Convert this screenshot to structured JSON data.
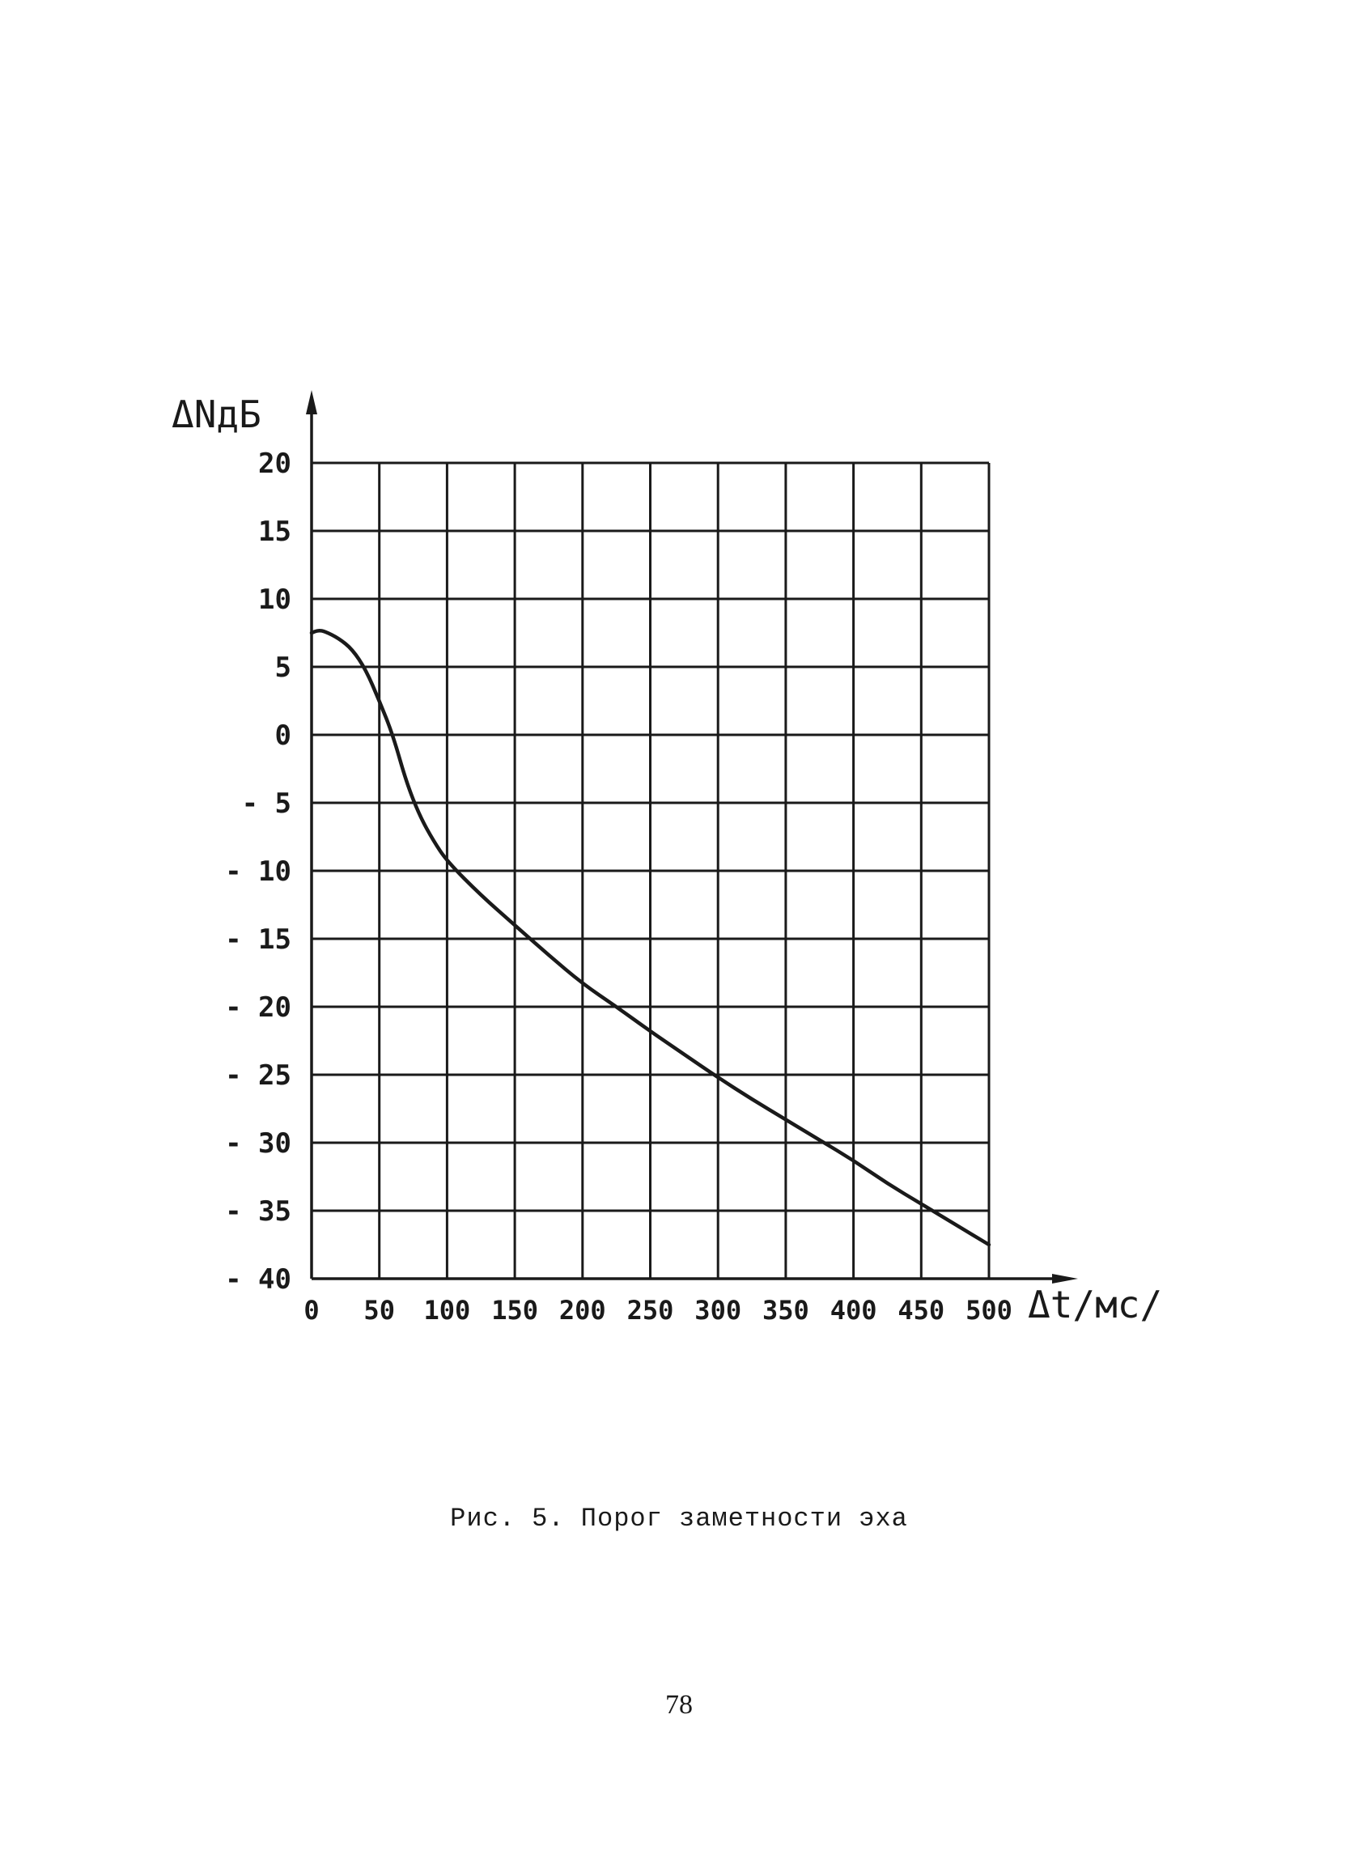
{
  "chart_data": {
    "type": "line",
    "title": "",
    "xlabel": "Δt/мс/",
    "ylabel": "ΔNдБ",
    "xlim": [
      0,
      500
    ],
    "ylim": [
      -40,
      20
    ],
    "x_ticks": [
      "0",
      "50",
      "100",
      "150",
      "200",
      "250",
      "300",
      "350",
      "400",
      "450",
      "500"
    ],
    "y_ticks": [
      "20",
      "15",
      "10",
      "5",
      "0",
      "- 5",
      "- 10",
      "- 15",
      "- 20",
      "- 25",
      "- 30",
      "- 35",
      "- 40"
    ],
    "grid": true,
    "series": [
      {
        "x": [
          0,
          5,
          10,
          20,
          30,
          40,
          50,
          60,
          70,
          80,
          90,
          100,
          125,
          150,
          175,
          200,
          225,
          250,
          275,
          300,
          325,
          350,
          375,
          400,
          425,
          450,
          475,
          500
        ],
        "y": [
          7.5,
          7.7,
          7.6,
          7.1,
          6.3,
          4.8,
          2.5,
          0,
          -3.5,
          -6.0,
          -7.8,
          -9.3,
          -11.8,
          -14.0,
          -16.2,
          -18.3,
          -20.0,
          -21.8,
          -23.5,
          -25.2,
          -26.8,
          -28.3,
          -29.8,
          -31.3,
          -33.0,
          -34.5,
          -36.0,
          -37.5
        ]
      }
    ],
    "colors": {
      "ink": "#1a1a1a"
    }
  },
  "caption": "Рис. 5. Порог заметности эха",
  "page_number": "78"
}
